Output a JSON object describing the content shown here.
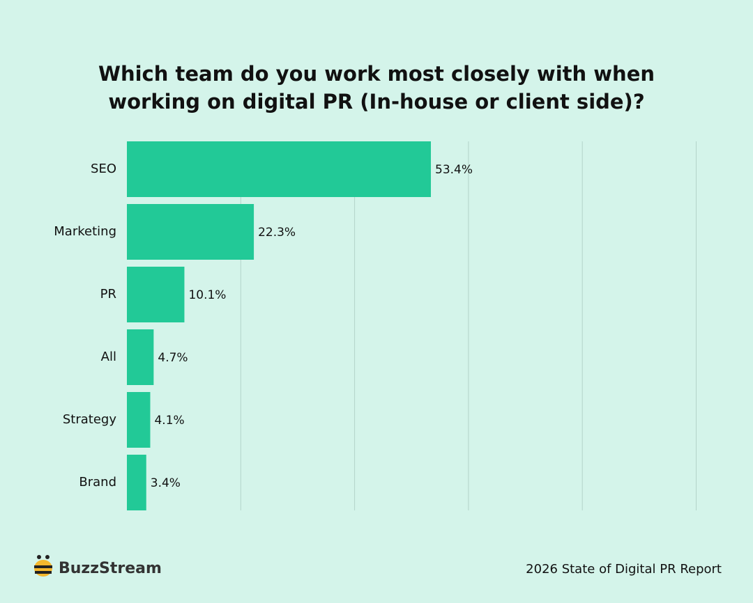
{
  "chart_data": {
    "type": "bar",
    "orientation": "horizontal",
    "title": [
      "Which team do you work most closely with when",
      "working on digital PR (In-house or client side)?"
    ],
    "categories": [
      "SEO",
      "Marketing",
      "PR",
      "All",
      "Strategy",
      "Brand"
    ],
    "values": [
      53.4,
      22.3,
      10.1,
      4.7,
      4.1,
      3.4
    ],
    "value_labels": [
      "53.4%",
      "22.3%",
      "10.1%",
      "4.7%",
      "4.1%",
      "3.4%"
    ],
    "color": "#22c997",
    "xlim": [
      0,
      100
    ],
    "xgrid": [
      20,
      40,
      60,
      80,
      100
    ],
    "grid": true
  },
  "footer": {
    "brand": "BuzzStream",
    "source": "2026 State of Digital PR Report"
  }
}
